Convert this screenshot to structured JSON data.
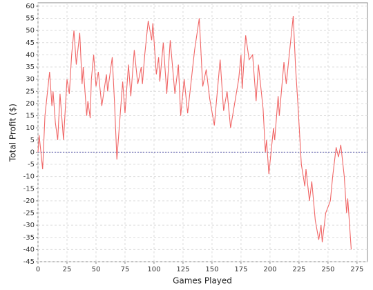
{
  "chart_data": {
    "type": "line",
    "x_label": "Games Played",
    "y_label": "Total Profit ($)",
    "x": [
      0,
      1,
      4,
      6,
      10,
      12,
      13,
      15,
      17,
      19,
      22,
      25,
      27,
      29,
      31,
      33,
      36,
      38,
      39,
      42,
      43,
      45,
      46,
      48,
      50,
      52,
      55,
      59,
      60,
      64,
      66,
      68,
      70,
      73,
      75,
      78,
      80,
      83,
      86,
      89,
      90,
      92,
      95,
      98,
      99,
      102,
      104,
      105,
      108,
      111,
      114,
      118,
      121,
      123,
      126,
      129,
      135,
      139,
      142,
      145,
      148,
      152,
      157,
      160,
      163,
      166,
      173,
      175,
      176,
      179,
      182,
      185,
      188,
      190,
      192,
      194,
      196,
      197,
      199,
      203,
      204,
      207,
      208,
      212,
      214,
      220,
      222,
      224,
      227,
      230,
      231,
      234,
      236,
      239,
      242,
      244,
      245,
      248,
      252,
      254,
      257,
      259,
      261,
      264,
      266,
      267,
      270
    ],
    "series": [
      {
        "name": "Total Profit",
        "color": "#f06666",
        "values": [
          0,
          7,
          -7,
          15,
          33,
          19,
          25,
          12,
          5,
          24,
          5,
          30,
          24,
          40,
          50,
          36,
          49,
          28,
          35,
          15,
          21,
          14,
          30,
          40,
          27,
          33,
          19,
          32,
          25,
          39,
          20,
          -3,
          10,
          29,
          16,
          36,
          23,
          42,
          28,
          35,
          28,
          40,
          54,
          46,
          53,
          32,
          39,
          29,
          45,
          24,
          46,
          24,
          36,
          15,
          30,
          16,
          42,
          55,
          27,
          34,
          22,
          11,
          38,
          17,
          25,
          10,
          30,
          40,
          26,
          48,
          38,
          40,
          21,
          36,
          27,
          18,
          0,
          5,
          -9,
          10,
          5,
          23,
          15,
          37,
          28,
          56,
          35,
          20,
          -5,
          -14,
          -7,
          -20,
          -12,
          -28,
          -36,
          -30,
          -37,
          -25,
          -20,
          -10,
          2,
          -2,
          3,
          -10,
          -25,
          -19,
          -40
        ]
      }
    ],
    "xlim": [
      0,
      284
    ],
    "ylim": [
      -45,
      61.4
    ],
    "xticks": [
      0,
      25,
      50,
      75,
      100,
      125,
      150,
      175,
      200,
      225,
      250,
      275
    ],
    "yticks": [
      -45,
      -40,
      -35,
      -30,
      -25,
      -20,
      -15,
      -10,
      -5,
      0,
      5,
      10,
      15,
      20,
      25,
      30,
      35,
      40,
      45,
      50,
      55,
      60
    ],
    "grid": true,
    "reference_line": {
      "value": 0,
      "color": "#5555aa"
    }
  }
}
